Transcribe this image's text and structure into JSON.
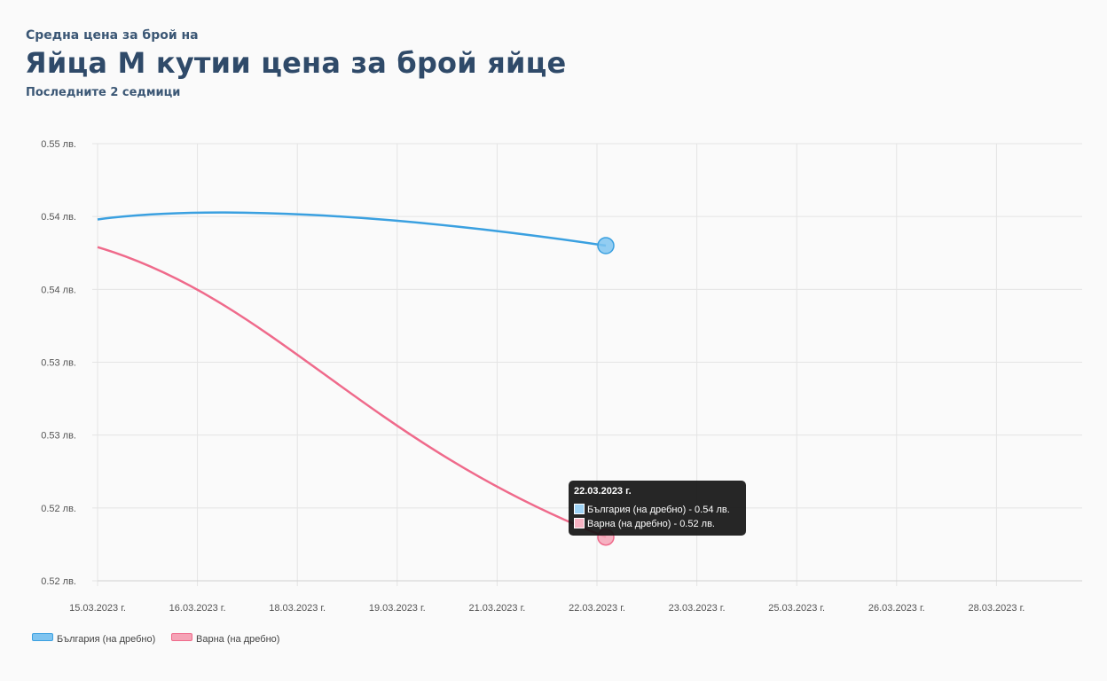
{
  "header": {
    "subtitle_top": "Средна цена за брой на",
    "title": "Яйца М кутии цена за брой яйце",
    "period": "Последните 2 седмици"
  },
  "chart_data": {
    "type": "line",
    "x": [
      "15.03.2023 г.",
      "16.03.2023 г.",
      "18.03.2023 г.",
      "19.03.2023 г.",
      "21.03.2023 г.",
      "22.03.2023 г.",
      "23.03.2023 г.",
      "25.03.2023 г.",
      "26.03.2023 г.",
      "28.03.2023 г."
    ],
    "y_ticks": [
      "0.55 лв.",
      "0.54 лв.",
      "0.54 лв.",
      "0.53 лв.",
      "0.53 лв.",
      "0.52 лв.",
      "0.52 лв."
    ],
    "ylim": [
      0.517,
      0.547
    ],
    "grid": true,
    "legend_position": "bottom-left",
    "series": [
      {
        "name": "България (на дребно)",
        "color": "#3aa0e0",
        "fill": "#7fc4f0",
        "x": [
          "15.03.2023 г.",
          "22.03.2023 г."
        ],
        "values": [
          0.5418,
          0.54
        ]
      },
      {
        "name": "Варна (на дребно)",
        "color": "#ef6a8b",
        "fill": "#f5a3b6",
        "x": [
          "15.03.2023 г.",
          "22.03.2023 г."
        ],
        "values": [
          0.5399,
          0.52
        ]
      }
    ],
    "tooltip": {
      "title": "22.03.2023 г.",
      "rows": [
        "България (на дребно) - 0.54 лв.",
        "Варна (на дребно) - 0.52 лв."
      ]
    }
  }
}
